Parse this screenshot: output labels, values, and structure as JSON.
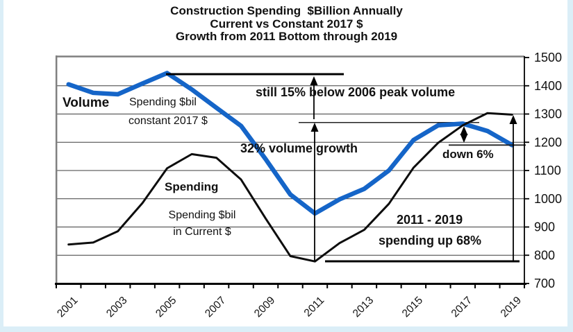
{
  "page": {
    "background": "#dbeef7",
    "card_background": "#ffffff"
  },
  "title": {
    "line1": "Construction Spending  $Billion Annually",
    "line2": "Current vs Constant 2017 $",
    "line3": "Growth from 2011 Bottom through 2019"
  },
  "chart_data": {
    "type": "line",
    "title": "Construction Spending $Billion Annually, Current vs Constant 2017 $, Growth from 2011 Bottom through 2019",
    "categories": [
      2001,
      2002,
      2003,
      2004,
      2005,
      2006,
      2007,
      2008,
      2009,
      2010,
      2011,
      2012,
      2013,
      2014,
      2015,
      2016,
      2017,
      2018,
      2019
    ],
    "series": [
      {
        "name": "Volume (Spending $bil constant 2017 $)",
        "color": "#1565c8",
        "stroke_width": 6.5,
        "values": [
          1405,
          1375,
          1370,
          1408,
          1445,
          1387,
          1322,
          1258,
          1140,
          1015,
          948,
          998,
          1035,
          1100,
          1208,
          1260,
          1266,
          1240,
          1190
        ]
      },
      {
        "name": "Spending (Spending $bil in Current $)",
        "color": "#0d0d0d",
        "stroke_width": 3,
        "values": [
          838,
          845,
          885,
          985,
          1108,
          1158,
          1145,
          1068,
          930,
          797,
          778,
          843,
          890,
          982,
          1110,
          1198,
          1260,
          1303,
          1298
        ]
      }
    ],
    "ylim": [
      700,
      1500
    ],
    "yticks": [
      700,
      800,
      900,
      1000,
      1100,
      1200,
      1300,
      1400,
      1500
    ],
    "xtick_labels": [
      "2001",
      "2003",
      "2005",
      "2007",
      "2009",
      "2011",
      "2013",
      "2015",
      "2017",
      "2019"
    ],
    "grid": "horizontal",
    "legend": "none (inline series labels)",
    "annotations": [
      {
        "id": "volume-series-label",
        "text": "Volume"
      },
      {
        "id": "volume-series-sub1",
        "text": "Spending $bil"
      },
      {
        "id": "volume-series-sub2",
        "text": "constant 2017 $"
      },
      {
        "id": "spending-series-label",
        "text": "Spending"
      },
      {
        "id": "spending-series-sub1",
        "text": "Spending $bil"
      },
      {
        "id": "spending-series-sub2",
        "text": "in Current $"
      },
      {
        "id": "peak-note",
        "text": "still 15% below 2006 peak volume"
      },
      {
        "id": "growth-note",
        "text": "32% volume growth"
      },
      {
        "id": "down-note",
        "text": "down 6%"
      },
      {
        "id": "range-note",
        "text": "2011 - 2019"
      },
      {
        "id": "up-note",
        "text": "spending up 68%"
      }
    ],
    "reference_levels": {
      "peak_volume_line": 1440,
      "volume_2017_line": 1270,
      "volume_2019_line": 1190,
      "spending_2011_bottom_line": 778
    }
  }
}
